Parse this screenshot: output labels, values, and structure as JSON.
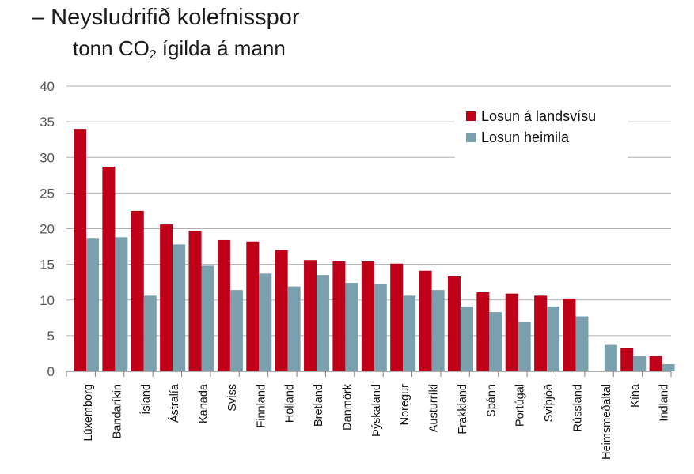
{
  "title": "– Neysludrifið kolefnisspor",
  "subtitle_prefix": "tonn CO",
  "subtitle_sub": "2",
  "subtitle_suffix": " ígilda á mann",
  "colors": {
    "national": "#c00018",
    "household": "#7a9fad",
    "grid": "#b0b0b0",
    "axis": "#808080"
  },
  "chart_data": {
    "type": "bar",
    "categories": [
      "Lúxemborg",
      "Bandaríkin",
      "Ísland",
      "Ástralía",
      "Kanada",
      "Sviss",
      "Finnland",
      "Holland",
      "Bretland",
      "Danmörk",
      "Þýskaland",
      "Noregur",
      "Austurríki",
      "Frakkland",
      "Spánn",
      "Portúgal",
      "Svíþjóð",
      "Rússland",
      "Heimsmeðaltal",
      "Kína",
      "Indland"
    ],
    "series": [
      {
        "name": "Losun á landsvísu",
        "color": "#c00018",
        "values": [
          34.0,
          28.7,
          22.5,
          20.6,
          19.7,
          18.4,
          18.2,
          17.0,
          15.6,
          15.4,
          15.4,
          15.1,
          14.1,
          13.3,
          11.1,
          10.9,
          10.6,
          10.2,
          null,
          3.3,
          2.1
        ]
      },
      {
        "name": "Losun heimila",
        "color": "#7a9fad",
        "values": [
          18.7,
          18.8,
          10.6,
          17.8,
          14.8,
          11.4,
          13.7,
          11.9,
          13.5,
          12.4,
          12.2,
          10.6,
          11.4,
          9.1,
          8.3,
          6.9,
          9.1,
          7.7,
          3.7,
          2.1,
          1.0
        ]
      }
    ],
    "ylim": [
      0,
      40
    ],
    "yticks": [
      0,
      5,
      10,
      15,
      20,
      25,
      30,
      35,
      40
    ],
    "grid": true,
    "legend": "top-right"
  }
}
